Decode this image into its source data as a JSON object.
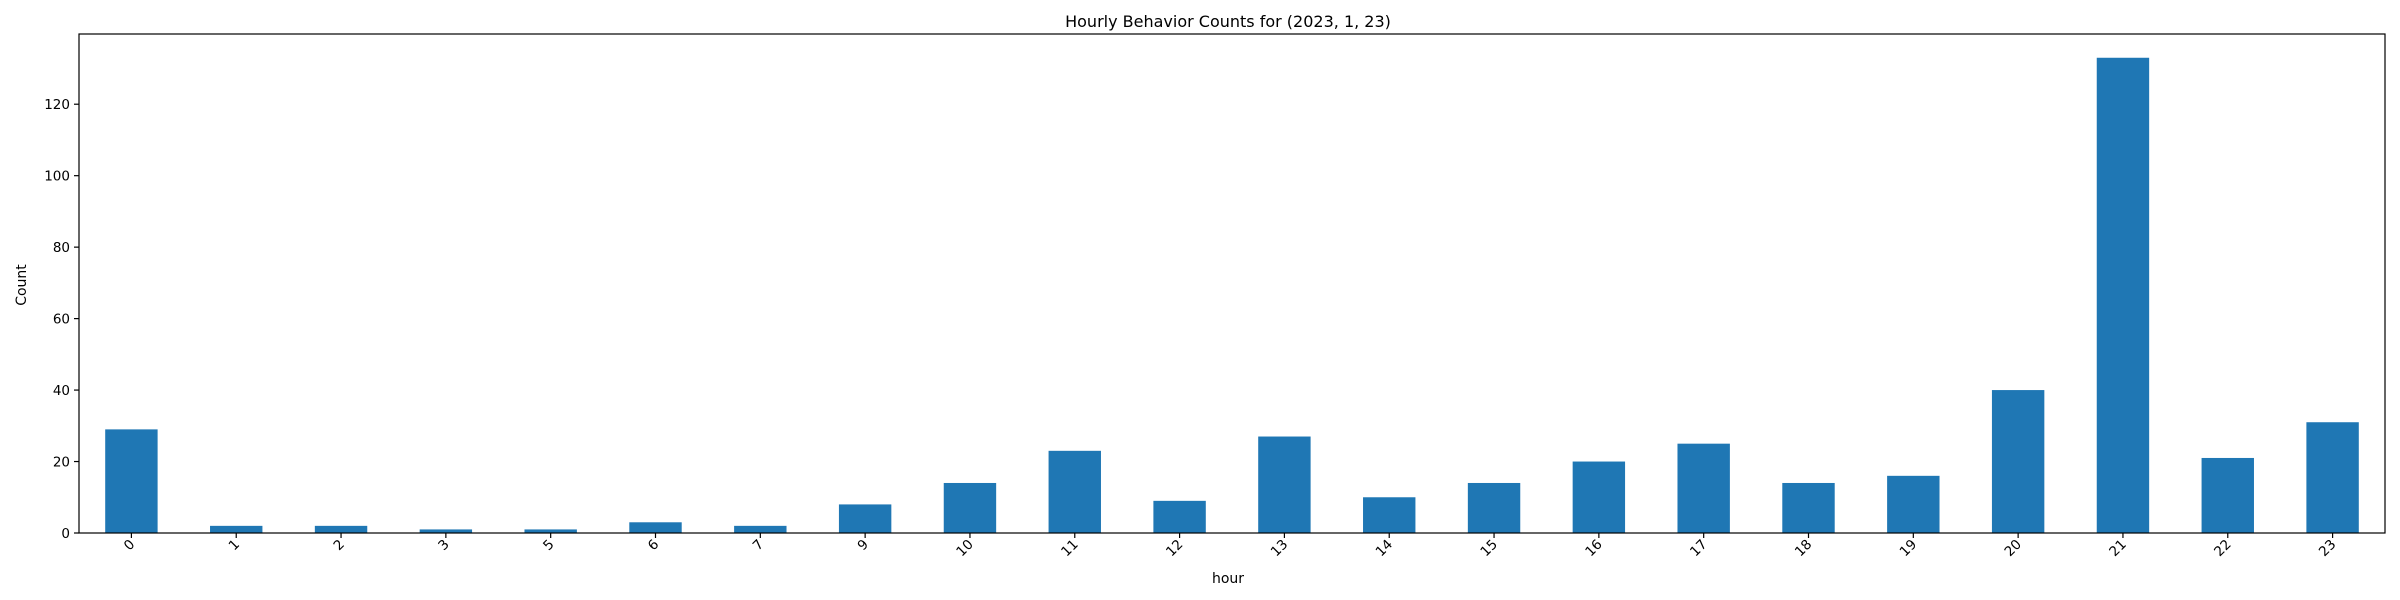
{
  "chart_data": {
    "type": "bar",
    "title": "Hourly Behavior Counts for (2023, 1, 23)",
    "xlabel": "hour",
    "ylabel": "Count",
    "categories": [
      "0",
      "1",
      "2",
      "3",
      "5",
      "6",
      "7",
      "9",
      "10",
      "11",
      "12",
      "13",
      "14",
      "15",
      "16",
      "17",
      "18",
      "19",
      "20",
      "21",
      "22",
      "23"
    ],
    "values": [
      29,
      2,
      2,
      1,
      1,
      3,
      2,
      8,
      14,
      23,
      9,
      27,
      10,
      14,
      20,
      25,
      14,
      16,
      40,
      133,
      21,
      31
    ],
    "y_ticks": [
      0,
      20,
      40,
      60,
      80,
      100,
      120
    ],
    "ylim": [
      0,
      139.65
    ],
    "grid": false,
    "legend": "none",
    "bar_color": "#1f77b4",
    "x_tick_rotation": 45
  }
}
